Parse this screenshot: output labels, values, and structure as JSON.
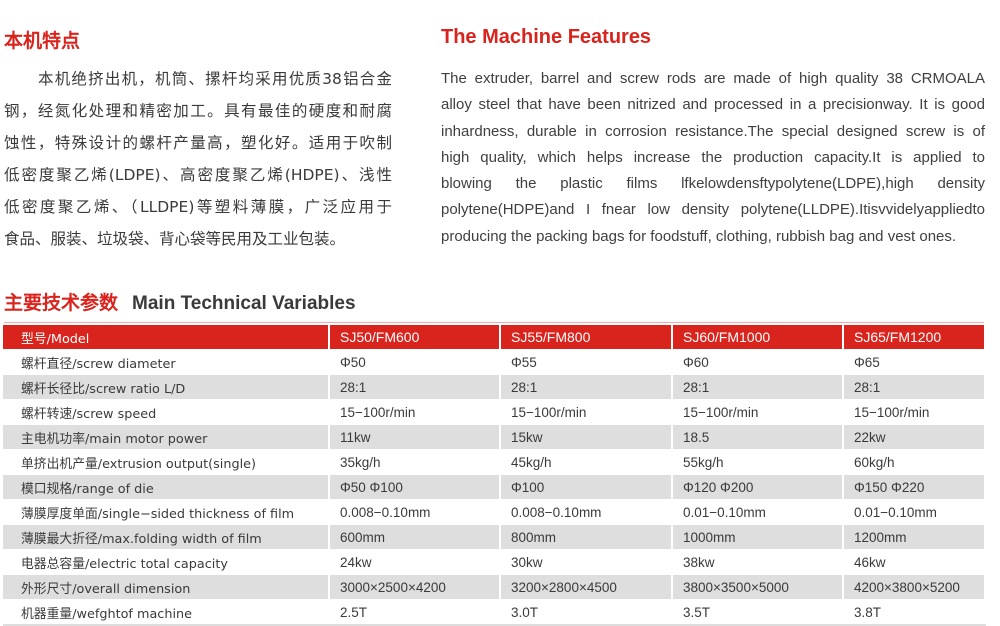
{
  "features_cn": {
    "title": "本机特点",
    "lines": [
      "本机绝挤出机，机筒、摞杆均采用优质38铝合金",
      "钢，经氮化处理和精密加工。具有最佳的硬度和耐腐",
      "蚀性，特殊设计的螺杆产量高，塑化好。适用于吹制",
      "低密度聚乙烯(LDPE)、高密度聚乙烯(HDPE)、浅性",
      "低密度聚乙烯、（LLDPE)等塑料薄膜，广泛应用于",
      "食品、服装、垃圾袋、背心袋等民用及工业包装。"
    ]
  },
  "features_en": {
    "title": "The Machine Features",
    "lines": [
      "The extruder, barrel and screw rods are made of high quality 38 CRMOALA",
      "alloy steel that have been nitrized and processed in a precisionway. It is good",
      "inhardness, durable in corrosion resistance.The special designed screw is of",
      "high quality, which helps increase the production capacity.It is applied to",
      "blowing the plastic films lfkelowdensftypolytene(LDPE),high density",
      "polytene(HDPE)and I fnear low density polytene(LLDPE).Itisvvidelyappliedto",
      "producing the packing bags for foodstuff, clothing, rubbish bag and vest ones."
    ]
  },
  "specs": {
    "title_cn": "主要技术参数",
    "title_en": "Main Technical Variables",
    "header": [
      "型号/Model",
      "SJ50/FM600",
      "SJ55/FM800",
      "SJ60/FM1000",
      "SJ65/FM1200"
    ],
    "rows": [
      [
        "螺杆直径/screw diameter",
        "Φ50",
        "Φ55",
        "Φ60",
        "Φ65"
      ],
      [
        "螺杆长径比/screw ratio L/D",
        "28:1",
        "28:1",
        "28:1",
        "28:1"
      ],
      [
        "螺杆转速/screw speed",
        "15−100r/min",
        "15−100r/min",
        "15−100r/min",
        "15−100r/min"
      ],
      [
        "主电机功率/main motor power",
        "11kw",
        "15kw",
        "18.5",
        "22kw"
      ],
      [
        "单挤出机产量/extrusion output(single)",
        "35kg/h",
        "45kg/h",
        "55kg/h",
        "60kg/h"
      ],
      [
        "模口规格/range of die",
        "Φ50 Φ100",
        "Φ100",
        "Φ120 Φ200",
        "Φ150 Φ220"
      ],
      [
        "薄膜厚度单面/single−sided thickness of film",
        "0.008−0.10mm",
        "0.008−0.10mm",
        "0.01−0.10mm",
        "0.01−0.10mm"
      ],
      [
        "薄膜最大折径/max.folding width of film",
        "600mm",
        "800mm",
        "1000mm",
        "1200mm"
      ],
      [
        "电器总容量/electric total capacity",
        "24kw",
        "30kw",
        "38kw",
        "46kw"
      ],
      [
        "外形尺寸/overall dimension",
        "3000×2500×4200",
        "3200×2800×4500",
        "3800×3500×5000",
        "4200×3800×5200"
      ],
      [
        "机器重量/wefghtof machine",
        "2.5T",
        "3.0T",
        "3.5T",
        "3.8T"
      ]
    ]
  },
  "colors": {
    "accent": "#d9231d",
    "row_alt": "#dedede",
    "text": "#3a3a3a"
  }
}
